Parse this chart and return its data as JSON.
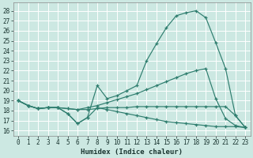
{
  "xlabel": "Humidex (Indice chaleur)",
  "bg_color": "#cce8e2",
  "grid_color": "#b8d8d0",
  "line_color": "#2e7d6e",
  "xlim": [
    -0.5,
    23.5
  ],
  "ylim": [
    15.5,
    28.8
  ],
  "yticks": [
    16,
    17,
    18,
    19,
    20,
    21,
    22,
    23,
    24,
    25,
    26,
    27,
    28
  ],
  "xticks": [
    0,
    1,
    2,
    3,
    4,
    5,
    6,
    7,
    8,
    9,
    10,
    11,
    12,
    13,
    14,
    15,
    16,
    17,
    18,
    19,
    20,
    21,
    22,
    23
  ],
  "curves": [
    {
      "x": [
        0,
        1,
        2,
        3,
        4,
        5,
        6,
        7,
        8,
        9,
        10,
        11,
        12,
        13,
        14,
        15,
        16,
        17,
        18,
        19,
        20,
        21,
        22,
        23
      ],
      "y": [
        19.0,
        18.5,
        18.2,
        18.3,
        18.3,
        17.7,
        16.7,
        17.3,
        20.5,
        19.2,
        19.5,
        20.0,
        20.5,
        23.0,
        24.7,
        26.3,
        27.5,
        27.8,
        28.0,
        27.3,
        24.8,
        22.2,
        17.5,
        16.3
      ]
    },
    {
      "x": [
        0,
        1,
        2,
        3,
        4,
        5,
        6,
        7,
        8,
        9,
        10,
        11,
        12,
        13,
        14,
        15,
        16,
        17,
        18,
        19,
        20,
        21,
        22,
        23
      ],
      "y": [
        19.0,
        18.5,
        18.2,
        18.3,
        18.3,
        18.2,
        18.1,
        18.3,
        18.5,
        18.8,
        19.1,
        19.4,
        19.7,
        20.1,
        20.5,
        20.9,
        21.3,
        21.7,
        22.0,
        22.2,
        19.2,
        17.2,
        16.5,
        16.3
      ]
    },
    {
      "x": [
        0,
        1,
        2,
        3,
        4,
        5,
        6,
        7,
        8,
        9,
        10,
        11,
        12,
        13,
        14,
        15,
        16,
        17,
        18,
        19,
        20,
        21,
        22,
        23
      ],
      "y": [
        19.0,
        18.5,
        18.2,
        18.3,
        18.3,
        18.2,
        18.1,
        18.1,
        18.2,
        18.3,
        18.3,
        18.3,
        18.4,
        18.4,
        18.4,
        18.4,
        18.4,
        18.4,
        18.4,
        18.4,
        18.4,
        18.4,
        17.5,
        16.3
      ]
    },
    {
      "x": [
        0,
        1,
        2,
        3,
        4,
        5,
        6,
        7,
        8,
        9,
        10,
        11,
        12,
        13,
        14,
        15,
        16,
        17,
        18,
        19,
        20,
        21,
        22,
        23
      ],
      "y": [
        19.0,
        18.5,
        18.2,
        18.3,
        18.3,
        17.7,
        16.7,
        17.3,
        18.3,
        18.1,
        17.9,
        17.7,
        17.5,
        17.3,
        17.1,
        16.9,
        16.8,
        16.7,
        16.6,
        16.5,
        16.4,
        16.4,
        16.4,
        16.3
      ]
    }
  ]
}
